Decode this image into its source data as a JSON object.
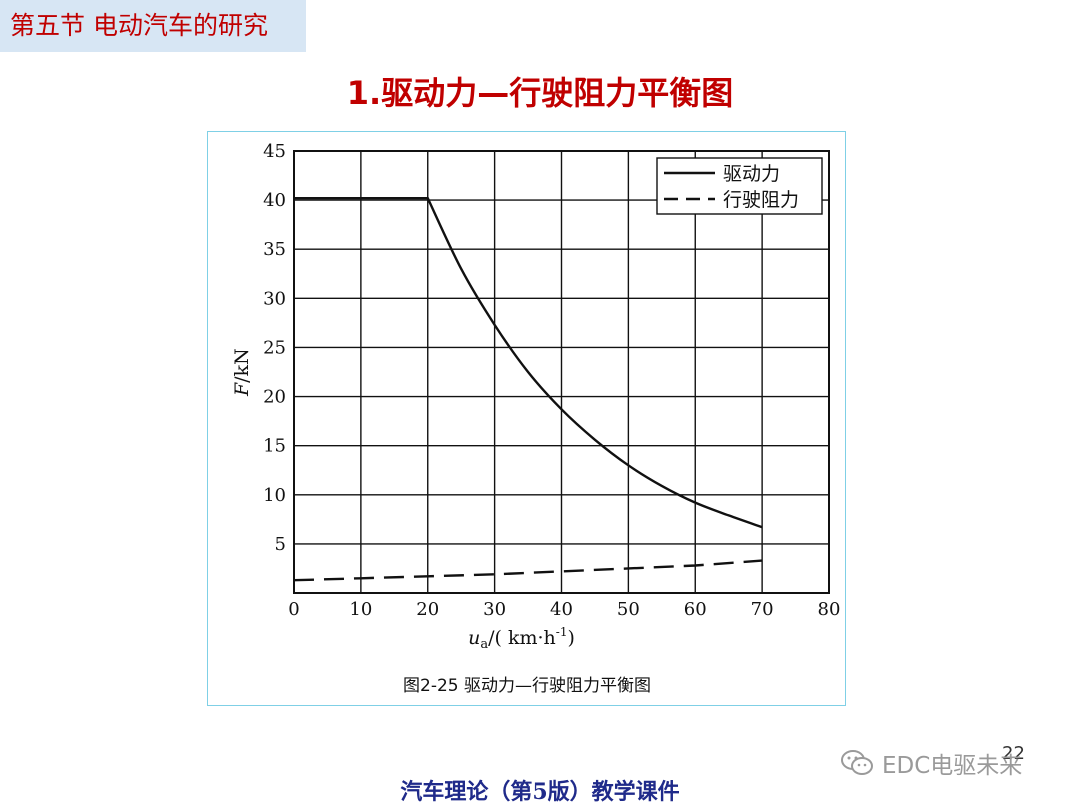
{
  "header": {
    "section": "第五节  电动汽车的研究",
    "title": "1.驱动力—行驶阻力平衡图"
  },
  "figure": {
    "caption": "图2-25   驱动力—行驶阻力平衡图"
  },
  "chart_data": {
    "type": "line",
    "xlabel_var": "u",
    "xlabel_sub": "a",
    "xlabel_unit": "/( km·h",
    "xlabel_sup": "-1",
    "xlabel_close": ")",
    "ylabel_var": "F",
    "ylabel_unit": "/kN",
    "xlim": [
      0,
      80
    ],
    "ylim": [
      0,
      45
    ],
    "xticks": [
      0,
      10,
      20,
      30,
      40,
      50,
      60,
      70,
      80
    ],
    "yticks": [
      5,
      10,
      15,
      20,
      25,
      30,
      35,
      40,
      45
    ],
    "grid": true,
    "legend_position": "top-right",
    "series": [
      {
        "name": "驱动力",
        "style": "solid",
        "x": [
          0,
          20,
          25,
          30,
          35,
          40,
          45,
          50,
          55,
          60,
          65,
          70
        ],
        "y": [
          40.2,
          40.2,
          33.0,
          27.3,
          22.5,
          18.7,
          15.6,
          13.0,
          10.9,
          9.2,
          7.9,
          6.7
        ]
      },
      {
        "name": "行驶阻力",
        "style": "dashed",
        "x": [
          0,
          10,
          20,
          30,
          40,
          50,
          60,
          70
        ],
        "y": [
          1.3,
          1.5,
          1.7,
          1.9,
          2.2,
          2.5,
          2.8,
          3.3
        ]
      }
    ]
  },
  "footer": {
    "course": "汽车理论（第5版）教学课件",
    "page": "22",
    "watermark": "EDC电驱未来"
  },
  "colors": {
    "accent": "#c00000",
    "footer": "#1f2a8a",
    "section_bg": "#d7e6f4"
  }
}
